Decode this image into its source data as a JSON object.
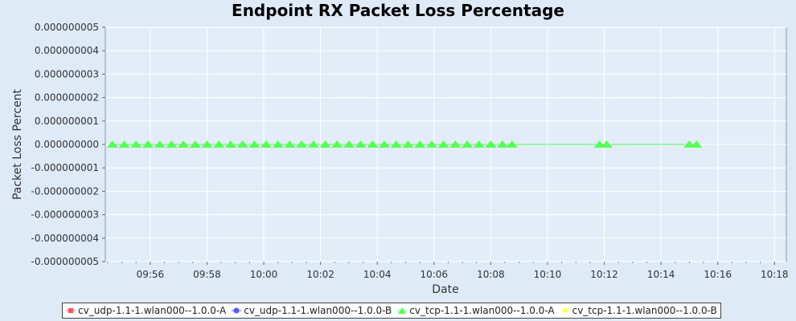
{
  "chart_data": {
    "type": "line",
    "title": "Endpoint RX Packet Loss Percentage",
    "xlabel": "Date",
    "ylabel": "Packet Loss Percent",
    "ylim": [
      -5e-09,
      5e-09
    ],
    "xlim": [
      "09:54:25",
      "10:18:25"
    ],
    "y_ticks": [
      "0.000000005",
      "0.000000004",
      "0.000000003",
      "0.000000002",
      "0.000000001",
      "0.000000000",
      "-0.000000001",
      "-0.000000002",
      "-0.000000003",
      "-0.000000004",
      "-0.000000005"
    ],
    "x_ticks": [
      "09:56",
      "09:58",
      "10:00",
      "10:02",
      "10:04",
      "10:06",
      "10:08",
      "10:10",
      "10:12",
      "10:14",
      "10:16",
      "10:18"
    ],
    "grid": true,
    "legend_position": "bottom",
    "series": [
      {
        "name": "cv_udp-1.1-1.wlan000--1.0.0-A",
        "color": "#ff5555",
        "marker": "square",
        "x": [],
        "values": []
      },
      {
        "name": "cv_udp-1.1-1.wlan000--1.0.0-B",
        "color": "#5555ff",
        "marker": "circle",
        "x": [],
        "values": []
      },
      {
        "name": "cv_tcp-1.1-1.wlan000--1.0.0-A",
        "color": "#55ff55",
        "marker": "triangle",
        "x": [
          "09:54:40",
          "09:55:05",
          "09:55:30",
          "09:55:55",
          "09:56:20",
          "09:56:45",
          "09:57:10",
          "09:57:35",
          "09:58:00",
          "09:58:25",
          "09:58:50",
          "09:59:15",
          "09:59:40",
          "10:00:05",
          "10:00:30",
          "10:00:55",
          "10:01:20",
          "10:01:45",
          "10:02:10",
          "10:02:35",
          "10:03:00",
          "10:03:25",
          "10:03:50",
          "10:04:15",
          "10:04:40",
          "10:05:05",
          "10:05:30",
          "10:05:55",
          "10:06:20",
          "10:06:45",
          "10:07:10",
          "10:07:35",
          "10:08:00",
          "10:08:25",
          "10:08:45",
          "10:11:50",
          "10:12:05",
          "10:15:00",
          "10:15:15"
        ],
        "values": [
          0,
          0,
          0,
          0,
          0,
          0,
          0,
          0,
          0,
          0,
          0,
          0,
          0,
          0,
          0,
          0,
          0,
          0,
          0,
          0,
          0,
          0,
          0,
          0,
          0,
          0,
          0,
          0,
          0,
          0,
          0,
          0,
          0,
          0,
          0,
          0,
          0,
          0,
          0
        ]
      },
      {
        "name": "cv_tcp-1.1-1.wlan000--1.0.0-B",
        "color": "#ffff55",
        "marker": "diamond",
        "x": [],
        "values": []
      }
    ]
  }
}
